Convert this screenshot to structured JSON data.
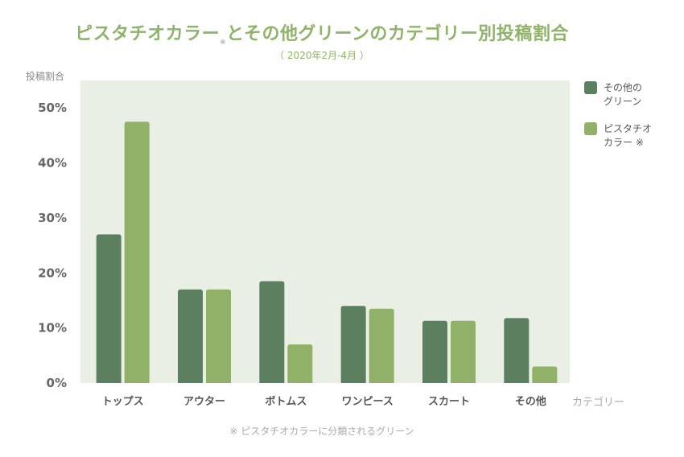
{
  "title": "ピスタチオカラーとその他グリーンのカテゴリー別投稿割合",
  "title_note_mark": "※",
  "subtitle": "（ 2020年2月-4月 ）",
  "footnote": "※ ピスタチオカラーに分類されるグリーン",
  "colors": {
    "plot_bg": "#e9efe4",
    "series_other_green": "#5c7f5f",
    "series_pistachio": "#91b068",
    "title": "#8fb36a"
  },
  "chart_data": {
    "type": "bar",
    "ylabel": "投稿割合",
    "xlabel": "カテゴリー",
    "categories": [
      "トップス",
      "アウター",
      "ボトムス",
      "ワンピース",
      "スカート",
      "その他"
    ],
    "series": [
      {
        "name": "その他の グリーン",
        "values": [
          27,
          17,
          18.5,
          14,
          11.3,
          11.8
        ]
      },
      {
        "name": "ピスタチオ カラー ※",
        "values": [
          47.5,
          17,
          7,
          13.5,
          11.3,
          3
        ]
      }
    ],
    "ylim": [
      0,
      55
    ],
    "yticks": [
      "0%",
      "10%",
      "20%",
      "30%",
      "40%",
      "50%"
    ],
    "ytick_values": [
      0,
      10,
      20,
      30,
      40,
      50
    ],
    "grid": false,
    "legend_position": "right"
  },
  "legend": [
    {
      "line1": "その他の",
      "line2": "グリーン"
    },
    {
      "line1": "ピスタチオ",
      "line2": "カラー ※"
    }
  ]
}
